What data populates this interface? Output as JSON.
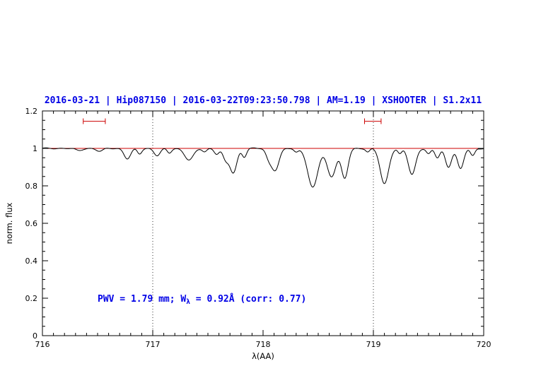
{
  "title": "2016-03-21 | Hip087150 | 2016-03-22T09:23:50.798 | AM=1.19 | XSHOOTER | S1.2x11",
  "annotation": {
    "part1": "PWV = 1.79 mm; W",
    "sub": "λ",
    "part2": " = 0.92Å (corr: 0.77)"
  },
  "colors": {
    "accent_blue": "#0000e6",
    "fit_red": "#cc0000",
    "spectrum_black": "#000000"
  },
  "chart_data": {
    "type": "line",
    "title": "2016-03-21 | Hip087150 | 2016-03-22T09:23:50.798 | AM=1.19 | XSHOOTER | S1.2x11",
    "xlabel": "λ(AA)",
    "ylabel": "norm. flux",
    "xlim": [
      716,
      720
    ],
    "ylim": [
      0,
      1.2
    ],
    "x_ticks": [
      716,
      717,
      718,
      719,
      720
    ],
    "y_ticks": [
      0,
      0.2,
      0.4,
      0.6,
      0.8,
      1,
      1.2
    ],
    "x_minor_step": 0.1,
    "y_minor_step": 0.05,
    "grid": false,
    "dotted_guides_x": [
      717,
      719
    ],
    "continuum": {
      "level": 1.0,
      "color": "#cc0000"
    },
    "range_markers": [
      {
        "x1": 716.37,
        "x2": 716.57,
        "y": 1.145,
        "color": "#cc0000"
      },
      {
        "x1": 718.92,
        "x2": 719.07,
        "y": 1.145,
        "color": "#cc0000"
      }
    ],
    "spectrum": {
      "color": "#000000",
      "continuum_level": 1.0,
      "sample_step": 0.008,
      "noise_amplitude": 0.002,
      "absorption_lines": [
        [
          716.33,
          0.012,
          0.03
        ],
        [
          716.52,
          0.015,
          0.03
        ],
        [
          716.77,
          0.055,
          0.03
        ],
        [
          716.88,
          0.03,
          0.02
        ],
        [
          717.04,
          0.038,
          0.028
        ],
        [
          717.15,
          0.025,
          0.02
        ],
        [
          717.33,
          0.062,
          0.04
        ],
        [
          717.47,
          0.018,
          0.02
        ],
        [
          717.58,
          0.03,
          0.022
        ],
        [
          717.66,
          0.06,
          0.025
        ],
        [
          717.73,
          0.13,
          0.032
        ],
        [
          717.83,
          0.045,
          0.02
        ],
        [
          718.05,
          0.045,
          0.025
        ],
        [
          718.11,
          0.115,
          0.035
        ],
        [
          718.3,
          0.02,
          0.02
        ],
        [
          718.45,
          0.21,
          0.045
        ],
        [
          718.62,
          0.15,
          0.04
        ],
        [
          718.74,
          0.16,
          0.03
        ],
        [
          718.95,
          0.02,
          0.018
        ],
        [
          719.1,
          0.19,
          0.038
        ],
        [
          719.24,
          0.03,
          0.018
        ],
        [
          719.35,
          0.14,
          0.033
        ],
        [
          719.5,
          0.03,
          0.02
        ],
        [
          719.58,
          0.05,
          0.022
        ],
        [
          719.68,
          0.1,
          0.028
        ],
        [
          719.79,
          0.11,
          0.028
        ],
        [
          719.9,
          0.04,
          0.02
        ]
      ]
    }
  }
}
